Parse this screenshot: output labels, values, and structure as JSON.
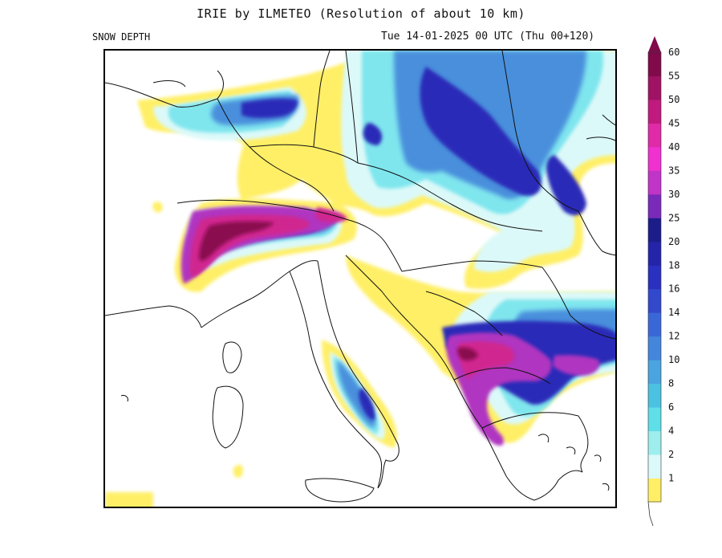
{
  "header": {
    "title": "IRIE by ILMETEO (Resolution of about 10 km)",
    "field": "SNOW DEPTH",
    "valid_time": "Tue 14-01-2025 00 UTC (Thu 00+120)"
  },
  "legend": {
    "levels": [
      {
        "label": "1",
        "color": "#ffef66"
      },
      {
        "label": "2",
        "color": "#dcf9f9"
      },
      {
        "label": "4",
        "color": "#9eeeee"
      },
      {
        "label": "6",
        "color": "#5fdfe8"
      },
      {
        "label": "8",
        "color": "#4cc2e3"
      },
      {
        "label": "10",
        "color": "#4aa4e0"
      },
      {
        "label": "12",
        "color": "#4386dc"
      },
      {
        "label": "14",
        "color": "#3a67d8"
      },
      {
        "label": "16",
        "color": "#3249cd"
      },
      {
        "label": "18",
        "color": "#2a30c0"
      },
      {
        "label": "20",
        "color": "#2424aa"
      },
      {
        "label": "25",
        "color": "#1c1c8a"
      },
      {
        "label": "30",
        "color": "#7a2ab8"
      },
      {
        "label": "35",
        "color": "#c034c8"
      },
      {
        "label": "40",
        "color": "#f030cf"
      },
      {
        "label": "45",
        "color": "#e02aa8"
      },
      {
        "label": "50",
        "color": "#c01a7e"
      },
      {
        "label": "55",
        "color": "#a01264"
      },
      {
        "label": "60",
        "color": "#800a4a"
      }
    ]
  }
}
